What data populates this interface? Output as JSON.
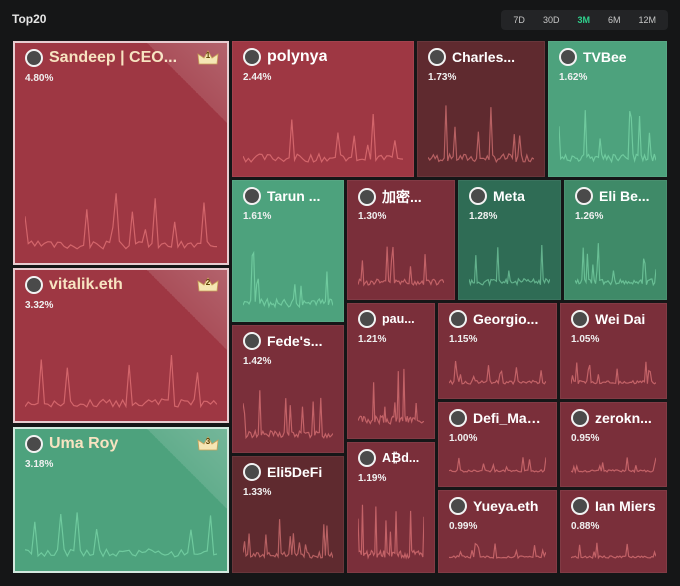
{
  "title": "Top20",
  "periods": [
    "7D",
    "30D",
    "3M",
    "6M",
    "12M"
  ],
  "active_period": "3M",
  "colors": {
    "red": "#9e3743",
    "dark_red": "#5f2a2f",
    "mid_red": "#7a2f3a",
    "green": "#4da27d",
    "dark_green": "#2f6c55",
    "mid_green": "#3f8a68",
    "crown": "#f5e6b4"
  },
  "tiles": [
    {
      "name": "Sandeep | CEO...",
      "pct": "4.80%",
      "rank": "1",
      "color": "red"
    },
    {
      "name": "vitalik.eth",
      "pct": "3.32%",
      "rank": "2",
      "color": "red"
    },
    {
      "name": "Uma Roy",
      "pct": "3.18%",
      "rank": "3",
      "color": "green"
    },
    {
      "name": "polynya",
      "pct": "2.44%",
      "color": "red"
    },
    {
      "name": "Charles...",
      "pct": "1.73%",
      "color": "dark_red"
    },
    {
      "name": "TVBee",
      "pct": "1.62%",
      "color": "green"
    },
    {
      "name": "Tarun ...",
      "pct": "1.61%",
      "color": "green"
    },
    {
      "name": "加密...",
      "pct": "1.30%",
      "color": "mid_red"
    },
    {
      "name": "Meta",
      "pct": "1.28%",
      "color": "dark_green"
    },
    {
      "name": "Eli Be...",
      "pct": "1.26%",
      "color": "mid_green"
    },
    {
      "name": "Fede's...",
      "pct": "1.42%",
      "color": "mid_red"
    },
    {
      "name": "pau...",
      "pct": "1.21%",
      "color": "mid_red"
    },
    {
      "name": "Georgio...",
      "pct": "1.15%",
      "color": "mid_red"
    },
    {
      "name": "Wei Dai",
      "pct": "1.05%",
      "color": "mid_red"
    },
    {
      "name": "Eli5DeFi",
      "pct": "1.33%",
      "color": "dark_red"
    },
    {
      "name": "A₿d...",
      "pct": "1.19%",
      "color": "mid_red"
    },
    {
      "name": "Defi_Mae...",
      "pct": "1.00%",
      "color": "mid_red"
    },
    {
      "name": "zerokn...",
      "pct": "0.95%",
      "color": "mid_red"
    },
    {
      "name": "Yueya.eth",
      "pct": "0.99%",
      "color": "mid_red"
    },
    {
      "name": "Ian Miers",
      "pct": "0.88%",
      "color": "mid_red"
    }
  ]
}
